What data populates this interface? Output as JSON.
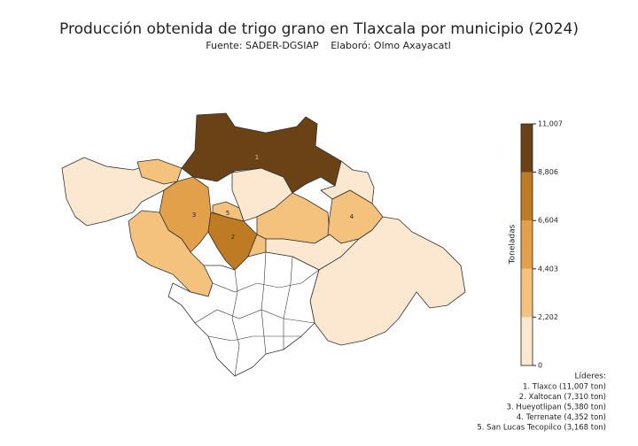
{
  "title": "Producción obtenida de trigo grano en Tlaxcala por municipio (2024)",
  "subtitle": {
    "source": "Fuente: SADER-DGSIAP",
    "author": "Elaboró: Olmo Axayacatl"
  },
  "colorbar": {
    "label": "Toneladas",
    "lim": [
      0,
      11007
    ],
    "ticks": [
      0,
      {
        "value": 2202,
        "label": "2,202"
      },
      {
        "value": 4403,
        "label": "4,403"
      },
      {
        "value": 6604,
        "label": "6,604"
      },
      {
        "value": 8806,
        "label": "8,806"
      },
      {
        "value": 11007,
        "label": "11,007"
      }
    ],
    "colors": [
      "#fce8d0",
      "#f4c27c",
      "#e3a04a",
      "#be7b24",
      "#6a4216"
    ]
  },
  "map_labels": [
    "1",
    "2",
    "3",
    "4",
    "5"
  ],
  "leaders": {
    "title": "Líderes:",
    "items": [
      "1. Tlaxco (11,007 ton)",
      "2. Xaltocan (7,310 ton)",
      "3. Hueyotlipan (5,380 ton)",
      "4. Terrenate (4,352 ton)",
      "5. San Lucas Tecopilco (3,168 ton)"
    ]
  }
}
